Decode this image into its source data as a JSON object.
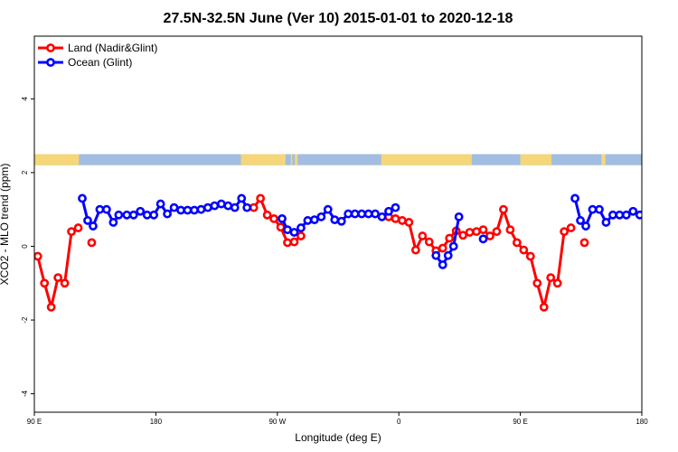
{
  "chart_data": {
    "type": "line",
    "title": "27.5N-32.5N June (Ver 10)   2015-01-01 to 2020-12-18",
    "xlabel": "Longitude (deg E)",
    "ylabel": "XCO2 - MLO trend (ppm)",
    "xlim": [
      90,
      540
    ],
    "ylim": [
      -4.5,
      5.7
    ],
    "x_ticks": [
      {
        "value": 90,
        "label": "90 E"
      },
      {
        "value": 180,
        "label": "180"
      },
      {
        "value": 270,
        "label": "90 W"
      },
      {
        "value": 360,
        "label": "0"
      },
      {
        "value": 450,
        "label": "90 E"
      },
      {
        "value": 540,
        "label": "180"
      }
    ],
    "y_ticks": [
      {
        "value": -4,
        "label": "-4"
      },
      {
        "value": -2,
        "label": "-2"
      },
      {
        "value": 0,
        "label": "0"
      },
      {
        "value": 2,
        "label": "2"
      },
      {
        "value": 4,
        "label": "4"
      }
    ],
    "grid": false,
    "legend_position": "top-left",
    "map_strip": {
      "y_range": [
        2.2,
        2.5
      ],
      "ocean_color": "#a3bde0",
      "land_color": "#f5d77a",
      "land_x_ranges": [
        [
          90,
          123
        ],
        [
          243,
          276
        ],
        [
          283,
          285
        ],
        [
          280,
          281
        ],
        [
          347,
          414
        ],
        [
          450,
          473
        ],
        [
          510,
          513
        ]
      ]
    },
    "series": [
      {
        "name": "Land (Nadir&Glint)",
        "color": "#ff0000",
        "segments": [
          [
            [
              92.5,
              -0.27
            ],
            [
              97.5,
              -1.0
            ],
            [
              102.5,
              -1.65
            ],
            [
              107.5,
              -0.85
            ],
            [
              112.5,
              -1.0
            ],
            [
              117.5,
              0.4
            ],
            [
              122.5,
              0.5
            ]
          ],
          [
            [
              252.5,
              1.05
            ],
            [
              257.5,
              1.3
            ],
            [
              262.5,
              0.85
            ],
            [
              267.5,
              0.75
            ],
            [
              272.5,
              0.52
            ],
            [
              277.5,
              0.1
            ],
            [
              282.5,
              0.12
            ],
            [
              287.5,
              0.28
            ]
          ],
          [
            [
              352.5,
              0.8
            ],
            [
              357.5,
              0.75
            ],
            [
              362.5,
              0.7
            ],
            [
              367.5,
              0.65
            ],
            [
              372.5,
              -0.1
            ],
            [
              377.5,
              0.28
            ],
            [
              382.5,
              0.12
            ],
            [
              387.5,
              -0.12
            ],
            [
              392.5,
              -0.05
            ],
            [
              397.5,
              0.22
            ],
            [
              402.5,
              0.42
            ],
            [
              407.5,
              0.3
            ],
            [
              412.5,
              0.38
            ],
            [
              417.5,
              0.4
            ],
            [
              422.5,
              0.45
            ],
            [
              427.5,
              0.28
            ],
            [
              432.5,
              0.4
            ],
            [
              437.5,
              1.0
            ],
            [
              442.5,
              0.45
            ],
            [
              447.5,
              0.1
            ],
            [
              452.5,
              -0.1
            ],
            [
              457.5,
              -0.27
            ],
            [
              462.5,
              -1.0
            ],
            [
              467.5,
              -1.65
            ],
            [
              472.5,
              -0.85
            ],
            [
              477.5,
              -1.0
            ],
            [
              482.5,
              0.4
            ],
            [
              487.5,
              0.5
            ]
          ],
          [
            [
              132.5,
              0.1
            ]
          ],
          [
            [
              497.5,
              0.1
            ]
          ]
        ]
      },
      {
        "name": "Ocean (Glint)",
        "color": "#0000ff",
        "segments": [
          [
            [
              125.5,
              1.3
            ],
            [
              129.5,
              0.7
            ],
            [
              133.5,
              0.55
            ],
            [
              138.5,
              1.0
            ],
            [
              143.5,
              1.0
            ],
            [
              148.5,
              0.65
            ],
            [
              152.5,
              0.85
            ],
            [
              158.5,
              0.85
            ],
            [
              163.5,
              0.85
            ],
            [
              168.5,
              0.95
            ],
            [
              173.5,
              0.85
            ],
            [
              178.5,
              0.85
            ],
            [
              183.5,
              1.15
            ],
            [
              188.5,
              0.88
            ],
            [
              193.5,
              1.05
            ],
            [
              198.5,
              0.98
            ],
            [
              203.5,
              0.98
            ],
            [
              208.5,
              0.98
            ],
            [
              213.5,
              1.0
            ],
            [
              218.5,
              1.05
            ],
            [
              223.5,
              1.1
            ],
            [
              228.5,
              1.15
            ],
            [
              233.5,
              1.1
            ],
            [
              238.5,
              1.05
            ],
            [
              243.5,
              1.3
            ],
            [
              247.5,
              1.05
            ]
          ],
          [
            [
              273.5,
              0.75
            ],
            [
              277.5,
              0.45
            ],
            [
              282.5,
              0.38
            ],
            [
              287.5,
              0.5
            ],
            [
              292.5,
              0.7
            ],
            [
              297.5,
              0.72
            ],
            [
              302.5,
              0.8
            ],
            [
              307.5,
              1.0
            ],
            [
              312.5,
              0.72
            ],
            [
              317.5,
              0.68
            ],
            [
              322.5,
              0.88
            ],
            [
              327.5,
              0.88
            ],
            [
              332.5,
              0.88
            ],
            [
              337.5,
              0.88
            ],
            [
              342.5,
              0.88
            ],
            [
              347.5,
              0.8
            ],
            [
              352.5,
              0.95
            ],
            [
              357.5,
              1.05
            ]
          ],
          [
            [
              387.5,
              -0.25
            ],
            [
              392.5,
              -0.5
            ],
            [
              396.5,
              -0.25
            ],
            [
              400.5,
              0.0
            ],
            [
              404.5,
              0.8
            ]
          ],
          [
            [
              490.5,
              1.3
            ],
            [
              494.5,
              0.7
            ],
            [
              498.5,
              0.55
            ],
            [
              503.5,
              1.0
            ],
            [
              508.5,
              1.0
            ],
            [
              513.5,
              0.65
            ],
            [
              518.5,
              0.85
            ],
            [
              523.5,
              0.85
            ],
            [
              528.5,
              0.85
            ],
            [
              533.5,
              0.95
            ],
            [
              538.5,
              0.85
            ],
            [
              543.5,
              0.85
            ]
          ],
          [
            [
              422.5,
              0.2
            ]
          ]
        ]
      }
    ]
  }
}
